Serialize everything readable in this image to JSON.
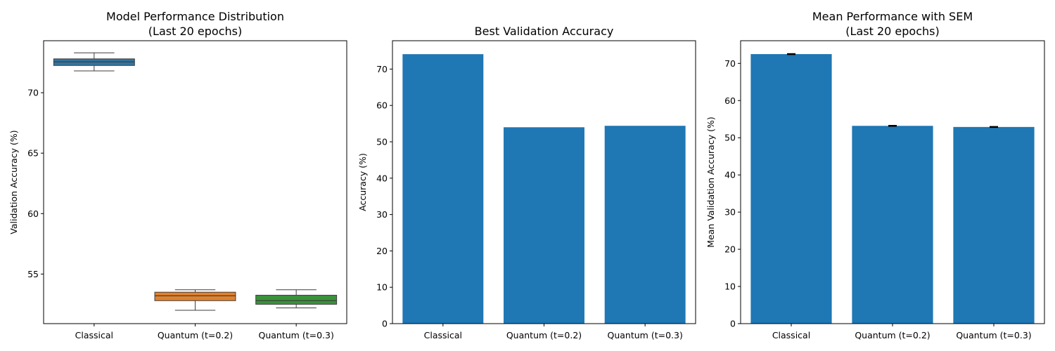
{
  "chart_data": [
    {
      "type": "box",
      "title": [
        "Model Performance Distribution",
        "(Last 20 epochs)"
      ],
      "ylabel": "Validation Accuracy (%)",
      "xlabel": "",
      "categories": [
        "Classical",
        "Quantum (t=0.2)",
        "Quantum (t=0.3)"
      ],
      "ylim": [
        50.9,
        74.3
      ],
      "yticks": [
        55,
        60,
        65,
        70
      ],
      "boxes": [
        {
          "min": 71.8,
          "q1": 72.25,
          "median": 72.55,
          "q3": 72.8,
          "max": 73.3,
          "color": "#3274a1"
        },
        {
          "min": 52.0,
          "q1": 52.8,
          "median": 53.2,
          "q3": 53.5,
          "max": 53.7,
          "color": "#e1812c"
        },
        {
          "min": 52.2,
          "q1": 52.5,
          "median": 52.8,
          "q3": 53.25,
          "max": 53.7,
          "color": "#3a923a"
        }
      ],
      "grid": false
    },
    {
      "type": "bar",
      "title": [
        "Best Validation Accuracy"
      ],
      "ylabel": "Accuracy (%)",
      "xlabel": "",
      "categories": [
        "Classical",
        "Quantum (t=0.2)",
        "Quantum (t=0.3)"
      ],
      "values": [
        74.1,
        54.0,
        54.4
      ],
      "ylim": [
        0,
        77.8
      ],
      "yticks": [
        0,
        10,
        20,
        30,
        40,
        50,
        60,
        70
      ],
      "color": "#1f77b4",
      "grid": false
    },
    {
      "type": "bar",
      "title": [
        "Mean Performance with SEM",
        "(Last 20 epochs)"
      ],
      "ylabel": "Mean Validation Accuracy (%)",
      "xlabel": "",
      "categories": [
        "Classical",
        "Quantum (t=0.2)",
        "Quantum (t=0.3)"
      ],
      "values": [
        72.5,
        53.2,
        52.9
      ],
      "errors": [
        0.1,
        0.1,
        0.1
      ],
      "ylim": [
        0,
        76.1
      ],
      "yticks": [
        0,
        10,
        20,
        30,
        40,
        50,
        60,
        70
      ],
      "color": "#1f77b4",
      "grid": false
    }
  ]
}
